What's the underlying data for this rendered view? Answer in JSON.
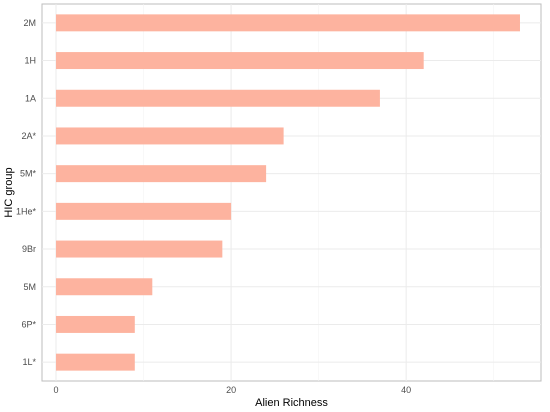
{
  "chart_data": {
    "type": "bar",
    "orientation": "horizontal",
    "categories": [
      "1L*",
      "6P*",
      "5M",
      "9Br",
      "1He*",
      "5M*",
      "2A*",
      "1A",
      "1H",
      "2M"
    ],
    "values": [
      9,
      9,
      11,
      19,
      20,
      24,
      26,
      37,
      42,
      53
    ],
    "xlabel": "Alien Richness",
    "ylabel": "HIC group",
    "xlim": [
      -1.6,
      55.4
    ],
    "xticks": [
      0,
      20,
      40
    ],
    "grid": true,
    "bar_color": "#fdb39f",
    "panel_border_color": "#bdbdbd",
    "grid_color": "#ebebeb"
  }
}
